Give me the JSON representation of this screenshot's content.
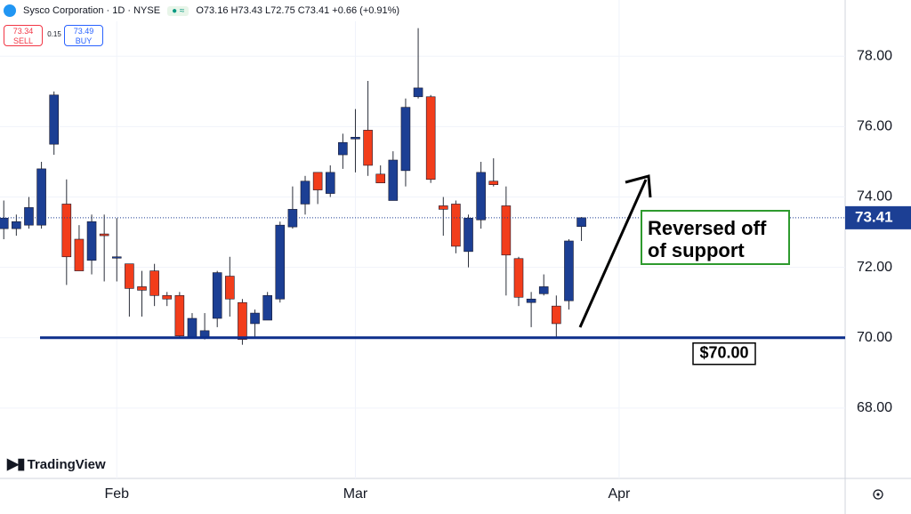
{
  "chart_data": {
    "type": "candlestick",
    "title": "Sysco Corporation · 1D · NYSE",
    "ohlc_text": "O73.16 H73.43 L72.75 C73.41 +0.66 (+0.91%)",
    "sell": {
      "price": "73.34",
      "label": "SELL"
    },
    "spread": "0.15",
    "buy": {
      "price": "73.49",
      "label": "BUY"
    },
    "annotation": "Reversed off of support",
    "support": {
      "value": 70,
      "label": "$70.00",
      "color": "#0d2f8c"
    },
    "last_price": {
      "value": 73.41,
      "label": "73.41"
    },
    "brand": "TradingView",
    "up_color": "#1c3f94",
    "down_color": "#f23d1b",
    "xlim": [
      -0.3,
      67
    ],
    "xticks": [
      {
        "value": 9,
        "label": "Feb"
      },
      {
        "value": 28,
        "label": "Mar"
      },
      {
        "value": 49,
        "label": "Apr"
      }
    ],
    "ylim": [
      66.0,
      79.6
    ],
    "yticks": [
      {
        "value": 68,
        "label": "68.00"
      },
      {
        "value": 70,
        "label": "70.00"
      },
      {
        "value": 72,
        "label": "72.00"
      },
      {
        "value": 74,
        "label": "74.00"
      },
      {
        "value": 76,
        "label": "76.00"
      },
      {
        "value": 78,
        "label": "78.00"
      }
    ],
    "grid": true,
    "open": [
      73.1,
      73.1,
      73.2,
      73.2,
      75.5,
      73.8,
      72.8,
      72.2,
      72.95,
      72.3,
      72.1,
      71.45,
      71.9,
      71.2,
      71.2,
      70.0,
      70.0,
      70.55,
      71.75,
      71.0,
      70.4,
      70.5,
      71.1,
      73.15,
      73.8,
      74.7,
      74.1,
      75.2,
      75.65,
      75.9,
      74.65,
      73.9,
      74.75,
      76.85,
      76.85,
      73.75,
      73.8,
      72.45,
      73.35,
      74.45,
      73.75,
      72.25,
      71.0,
      71.25,
      70.9,
      71.05,
      73.16
    ],
    "high": [
      73.9,
      73.5,
      74.0,
      75.0,
      77.0,
      74.5,
      73.2,
      73.5,
      73.5,
      73.4,
      72.1,
      71.9,
      72.1,
      71.3,
      71.3,
      70.7,
      70.7,
      71.9,
      72.3,
      71.1,
      70.8,
      71.3,
      73.3,
      74.3,
      74.6,
      74.7,
      74.9,
      75.8,
      76.5,
      77.3,
      74.9,
      75.3,
      76.8,
      78.8,
      76.9,
      74.0,
      73.9,
      73.5,
      75.0,
      75.1,
      74.3,
      72.3,
      71.3,
      71.8,
      71.2,
      72.8,
      73.43
    ],
    "low": [
      72.8,
      72.9,
      73.1,
      73.1,
      75.2,
      71.5,
      71.9,
      71.8,
      71.6,
      71.6,
      70.6,
      70.6,
      70.9,
      70.9,
      70.0,
      70.0,
      69.95,
      70.3,
      70.6,
      69.8,
      70.0,
      70.5,
      71.0,
      73.1,
      73.5,
      73.8,
      74.0,
      74.8,
      74.7,
      74.6,
      74.4,
      73.9,
      74.3,
      76.8,
      74.4,
      72.9,
      72.4,
      72.0,
      73.1,
      74.3,
      71.2,
      70.9,
      70.3,
      71.2,
      70.0,
      70.8,
      72.75
    ],
    "close": [
      73.4,
      73.3,
      73.7,
      74.8,
      76.9,
      72.3,
      71.9,
      73.3,
      72.9,
      72.3,
      71.4,
      71.35,
      71.2,
      71.1,
      70.05,
      70.55,
      70.2,
      71.85,
      71.1,
      69.95,
      70.7,
      71.2,
      73.2,
      73.65,
      74.45,
      74.2,
      74.7,
      75.55,
      75.7,
      74.9,
      74.4,
      75.05,
      76.55,
      77.1,
      74.5,
      73.65,
      72.6,
      73.4,
      74.7,
      74.35,
      72.35,
      71.15,
      71.1,
      71.45,
      70.4,
      72.75,
      73.41
    ]
  }
}
